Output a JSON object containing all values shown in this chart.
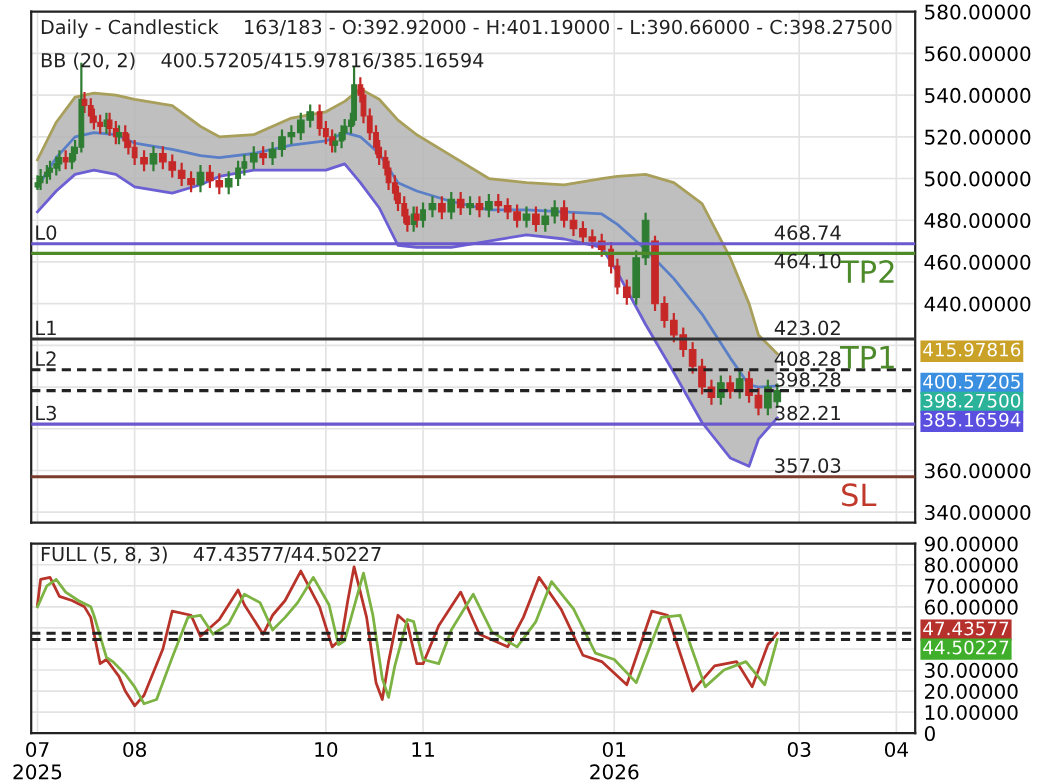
{
  "chart_data": [
    {
      "type": "candlestick",
      "title": "Daily - Candlestick    163/183 - O:392.92000 - H:401.19000 - L:390.66000 - C:398.27500",
      "subtitle": "BB (20, 2)    400.57205/415.97816/385.16594",
      "x": [
        "2025-07-01",
        "2025-07-02",
        "2025-07-04",
        "2025-07-05",
        "2025-07-07",
        "2025-07-08",
        "2025-07-10",
        "2025-07-12",
        "2025-07-13",
        "2025-07-15",
        "2025-07-16",
        "2025-07-18",
        "2025-07-19",
        "2025-07-21",
        "2025-07-23",
        "2025-07-24",
        "2025-07-26",
        "2025-07-27",
        "2025-07-29",
        "2025-07-30",
        "2025-08-01",
        "2025-08-04",
        "2025-08-07",
        "2025-08-10",
        "2025-08-13",
        "2025-08-16",
        "2025-08-19",
        "2025-08-22",
        "2025-08-25",
        "2025-08-28",
        "2025-08-31",
        "2025-09-03",
        "2025-09-05",
        "2025-09-08",
        "2025-09-11",
        "2025-09-14",
        "2025-09-17",
        "2025-09-20",
        "2025-09-23",
        "2025-09-26",
        "2025-09-29",
        "2025-10-01",
        "2025-10-03",
        "2025-10-04",
        "2025-10-06",
        "2025-10-07",
        "2025-10-09",
        "2025-10-10",
        "2025-10-12",
        "2025-10-13",
        "2025-10-15",
        "2025-10-17",
        "2025-10-18",
        "2025-10-20",
        "2025-10-21",
        "2025-10-23",
        "2025-10-24",
        "2025-10-26",
        "2025-10-27",
        "2025-10-29",
        "2025-10-30",
        "2025-11-01",
        "2025-11-04",
        "2025-11-07",
        "2025-11-10",
        "2025-11-13",
        "2025-11-16",
        "2025-11-19",
        "2025-11-22",
        "2025-11-25",
        "2025-11-28",
        "2025-12-01",
        "2025-12-04",
        "2025-12-07",
        "2025-12-10",
        "2025-12-13",
        "2025-12-16",
        "2025-12-19",
        "2025-12-22",
        "2025-12-25",
        "2025-12-28",
        "2025-12-31",
        "2026-01-02",
        "2026-01-05",
        "2026-01-08",
        "2026-01-11",
        "2026-01-14",
        "2026-01-17",
        "2026-01-20",
        "2026-01-23",
        "2026-01-26",
        "2026-01-29",
        "2026-02-01",
        "2026-02-04",
        "2026-02-07",
        "2026-02-10",
        "2026-02-13",
        "2026-02-16",
        "2026-02-19",
        "2026-02-22"
      ],
      "ohlc": [
        [
          496,
          501,
          495,
          498
        ],
        [
          498,
          504,
          495,
          501
        ],
        [
          501,
          506,
          498,
          503
        ],
        [
          503,
          508,
          500,
          505
        ],
        [
          505,
          510,
          502,
          507
        ],
        [
          507,
          513,
          504,
          510
        ],
        [
          510,
          513,
          505,
          508
        ],
        [
          508,
          515,
          505,
          512
        ],
        [
          512,
          518,
          509,
          515
        ],
        [
          515,
          555,
          513,
          538
        ],
        [
          538,
          541,
          532,
          535
        ],
        [
          535,
          538,
          527,
          530
        ],
        [
          530,
          533,
          524,
          527
        ],
        [
          527,
          530,
          522,
          525
        ],
        [
          525,
          531,
          522,
          528
        ],
        [
          528,
          531,
          521,
          524
        ],
        [
          524,
          527,
          517,
          520
        ],
        [
          520,
          525,
          517,
          522
        ],
        [
          522,
          525,
          515,
          518
        ],
        [
          518,
          521,
          512,
          515
        ],
        [
          515,
          518,
          507,
          510
        ],
        [
          510,
          513,
          504,
          507
        ],
        [
          507,
          515,
          504,
          512
        ],
        [
          512,
          515,
          505,
          508
        ],
        [
          508,
          511,
          501,
          504
        ],
        [
          504,
          507,
          497,
          500
        ],
        [
          500,
          503,
          494,
          497
        ],
        [
          497,
          506,
          494,
          503
        ],
        [
          503,
          506,
          496,
          499
        ],
        [
          499,
          502,
          493,
          496
        ],
        [
          496,
          503,
          493,
          500
        ],
        [
          500,
          508,
          497,
          505
        ],
        [
          505,
          511,
          502,
          508
        ],
        [
          508,
          515,
          505,
          512
        ],
        [
          512,
          515,
          507,
          510
        ],
        [
          510,
          517,
          507,
          514
        ],
        [
          514,
          523,
          511,
          520
        ],
        [
          520,
          525,
          517,
          522
        ],
        [
          522,
          531,
          519,
          528
        ],
        [
          528,
          535,
          525,
          532
        ],
        [
          532,
          535,
          521,
          524
        ],
        [
          524,
          527,
          517,
          520
        ],
        [
          520,
          523,
          513,
          516
        ],
        [
          516,
          521,
          513,
          518
        ],
        [
          518,
          525,
          515,
          522
        ],
        [
          522,
          528,
          519,
          525
        ],
        [
          525,
          531,
          522,
          528
        ],
        [
          528,
          553,
          526,
          545
        ],
        [
          545,
          548,
          537,
          540
        ],
        [
          540,
          543,
          527,
          530
        ],
        [
          530,
          533,
          519,
          522
        ],
        [
          522,
          525,
          512,
          515
        ],
        [
          515,
          518,
          507,
          510
        ],
        [
          510,
          513,
          502,
          505
        ],
        [
          505,
          508,
          495,
          498
        ],
        [
          498,
          501,
          490,
          493
        ],
        [
          493,
          496,
          485,
          488
        ],
        [
          488,
          491,
          479,
          482
        ],
        [
          482,
          485,
          475,
          478
        ],
        [
          478,
          486,
          475,
          483
        ],
        [
          483,
          486,
          477,
          480
        ],
        [
          480,
          488,
          477,
          485
        ],
        [
          485,
          491,
          482,
          488
        ],
        [
          488,
          491,
          481,
          484
        ],
        [
          484,
          493,
          481,
          490
        ],
        [
          490,
          493,
          483,
          486
        ],
        [
          486,
          491,
          483,
          488
        ],
        [
          488,
          491,
          482,
          485
        ],
        [
          485,
          492,
          482,
          489
        ],
        [
          489,
          492,
          484,
          487
        ],
        [
          487,
          490,
          481,
          484
        ],
        [
          484,
          487,
          477,
          480
        ],
        [
          480,
          486,
          477,
          483
        ],
        [
          483,
          486,
          475,
          478
        ],
        [
          478,
          485,
          475,
          482
        ],
        [
          482,
          489,
          479,
          486
        ],
        [
          486,
          489,
          477,
          480
        ],
        [
          480,
          483,
          473,
          476
        ],
        [
          476,
          479,
          469,
          472
        ],
        [
          472,
          475,
          467,
          470
        ],
        [
          470,
          473,
          463,
          466
        ],
        [
          466,
          469,
          455,
          458
        ],
        [
          458,
          461,
          445,
          448
        ],
        [
          448,
          451,
          440,
          443
        ],
        [
          443,
          465,
          440,
          462
        ],
        [
          462,
          483,
          459,
          480
        ],
        [
          470,
          472,
          437,
          440
        ],
        [
          440,
          443,
          429,
          432
        ],
        [
          432,
          435,
          422,
          425
        ],
        [
          425,
          428,
          415,
          418
        ],
        [
          418,
          421,
          407,
          410
        ],
        [
          410,
          413,
          397,
          400
        ],
        [
          400,
          403,
          392,
          395
        ],
        [
          395,
          405,
          392,
          402
        ],
        [
          402,
          405,
          395,
          398
        ],
        [
          398,
          407,
          395,
          404
        ],
        [
          404,
          407,
          393,
          396
        ],
        [
          396,
          399,
          387,
          390
        ],
        [
          390,
          403,
          387,
          400
        ],
        [
          392.92,
          401.19,
          390.66,
          398.275
        ]
      ],
      "series": [
        {
          "type": "line",
          "color": "#a89f5a",
          "x": [
            "2025-07-01",
            "2025-07-07",
            "2025-07-13",
            "2025-07-19",
            "2025-07-26",
            "2025-08-01",
            "2025-08-13",
            "2025-08-22",
            "2025-08-28",
            "2025-09-08",
            "2025-09-20",
            "2025-10-01",
            "2025-10-07",
            "2025-10-12",
            "2025-10-18",
            "2025-10-24",
            "2025-10-30",
            "2025-11-10",
            "2025-11-22",
            "2025-12-04",
            "2025-12-16",
            "2025-12-28",
            "2026-01-02",
            "2026-01-11",
            "2026-01-20",
            "2026-01-29",
            "2026-02-07",
            "2026-02-13",
            "2026-02-16",
            "2026-02-22"
          ],
          "values": [
            509,
            527,
            539,
            541,
            540,
            538,
            535,
            525,
            520,
            521,
            529,
            532,
            537,
            543,
            538,
            528,
            521,
            511,
            500,
            498,
            497,
            500,
            501,
            502,
            498,
            488,
            462,
            440,
            425,
            415.97816
          ]
        },
        {
          "type": "line",
          "color": "#6b5fd3",
          "x": [
            "2025-07-01",
            "2025-07-07",
            "2025-07-13",
            "2025-07-19",
            "2025-07-26",
            "2025-08-01",
            "2025-08-13",
            "2025-08-22",
            "2025-08-28",
            "2025-09-08",
            "2025-09-20",
            "2025-10-01",
            "2025-10-07",
            "2025-10-12",
            "2025-10-18",
            "2025-10-24",
            "2025-10-30",
            "2025-11-10",
            "2025-11-22",
            "2025-12-04",
            "2025-12-16",
            "2025-12-28",
            "2026-01-02",
            "2026-01-11",
            "2026-01-20",
            "2026-01-29",
            "2026-02-07",
            "2026-02-13",
            "2026-02-16",
            "2026-02-22"
          ],
          "values": [
            484,
            494,
            502,
            504,
            502,
            496,
            493,
            497,
            501,
            504,
            504,
            504,
            507,
            498,
            486,
            468,
            467,
            467,
            470,
            473,
            471,
            467,
            455,
            430,
            407,
            383,
            366,
            362,
            375,
            385.16594
          ]
        },
        {
          "type": "line",
          "color": "#5b7fc7",
          "x": [
            "2025-07-01",
            "2025-07-07",
            "2025-07-13",
            "2025-07-19",
            "2025-07-26",
            "2025-08-01",
            "2025-08-13",
            "2025-08-22",
            "2025-08-28",
            "2025-09-08",
            "2025-09-20",
            "2025-10-01",
            "2025-10-07",
            "2025-10-12",
            "2025-10-18",
            "2025-10-24",
            "2025-10-30",
            "2025-11-10",
            "2025-11-22",
            "2025-12-04",
            "2025-12-16",
            "2025-12-28",
            "2026-01-02",
            "2026-01-11",
            "2026-01-20",
            "2026-01-29",
            "2026-02-07",
            "2026-02-13",
            "2026-02-16",
            "2026-02-22"
          ],
          "values": [
            496,
            510,
            520,
            522,
            521,
            517,
            514,
            511,
            510,
            512,
            516,
            518,
            522,
            520,
            512,
            498,
            494,
            489,
            485,
            485,
            484,
            483,
            478,
            466,
            452,
            435,
            414,
            401,
            400,
            400.57205
          ],
          "upper": [
            509,
            527,
            539,
            541,
            540,
            538,
            535,
            525,
            520,
            521,
            529,
            532,
            537,
            543,
            538,
            528,
            521,
            511,
            500,
            498,
            497,
            500,
            501,
            502,
            498,
            488,
            462,
            440,
            425,
            415.97816
          ],
          "lower": [
            484,
            494,
            502,
            504,
            502,
            496,
            493,
            497,
            501,
            504,
            504,
            504,
            507,
            498,
            486,
            468,
            467,
            467,
            470,
            473,
            471,
            467,
            455,
            430,
            407,
            383,
            366,
            362,
            375,
            385.16594
          ]
        }
      ],
      "xlim": [
        "2025-06-29",
        "2026-04-07"
      ],
      "ylim": [
        335,
        580
      ],
      "xticks": [
        {
          "value": "2025-07-01",
          "label": null
        },
        {
          "value": "2025-08-01",
          "label": null
        },
        {
          "value": "2025-10-01",
          "label": null
        },
        {
          "value": "2025-11-01",
          "label": null
        },
        {
          "value": "2026-01-01",
          "label": null
        },
        {
          "value": "2026-03-01",
          "label": null
        },
        {
          "value": "2026-04-01",
          "label": null
        }
      ],
      "yticks": [
        {
          "value": 340,
          "label": "340.00000"
        },
        {
          "value": 360,
          "label": "360.00000"
        },
        {
          "value": 380,
          "label": null
        },
        {
          "value": 400,
          "label": null
        },
        {
          "value": 420,
          "label": null
        },
        {
          "value": 440,
          "label": "440.00000"
        },
        {
          "value": 460,
          "label": "460.00000"
        },
        {
          "value": 480,
          "label": "480.00000"
        },
        {
          "value": 500,
          "label": "500.00000"
        },
        {
          "value": 520,
          "label": "520.00000"
        },
        {
          "value": 540,
          "label": "540.00000"
        },
        {
          "value": 560,
          "label": "560.00000"
        },
        {
          "value": 580,
          "label": "580.00000"
        }
      ],
      "tick_labels": "y",
      "grid": true,
      "ref_lines": [
        {
          "axis": "y",
          "value": 468.74,
          "label": "468.74",
          "color": "#6a5acd",
          "line_style": "solid"
        },
        {
          "axis": "y",
          "value": 464.1,
          "label": "464.10",
          "color": "#4c8a2a",
          "line_style": "solid"
        },
        {
          "axis": "y",
          "value": 423.02,
          "label": "423.02",
          "color": "#333333",
          "line_style": "solid"
        },
        {
          "axis": "y",
          "value": 408.28,
          "label": "408.28",
          "color": "#222222",
          "line_style": "dashed"
        },
        {
          "axis": "y",
          "value": 398.28,
          "label": "398.28",
          "color": "#222222",
          "line_style": "dashed"
        },
        {
          "axis": "y",
          "value": 382.21,
          "label": "382.21",
          "color": "#6a5acd",
          "line_style": "solid"
        },
        {
          "axis": "y",
          "value": 357.03,
          "label": "357.03",
          "color": "#7b3b2b",
          "line_style": "solid"
        }
      ],
      "annotations": [
        {
          "text": "L0",
          "x": "2025-06-30",
          "y": 468.74
        },
        {
          "text": "L1",
          "x": "2025-06-30",
          "y": 423.02
        },
        {
          "text": "L2",
          "x": "2025-06-30",
          "y": 408.28
        },
        {
          "text": "L3",
          "x": "2025-06-30",
          "y": 382.21
        },
        "TP2",
        "TP1",
        "SL",
        "415.97816",
        "400.57205",
        "398.27500",
        "385.16594"
      ]
    },
    {
      "type": "line",
      "title": "FULL (5, 8, 3)    47.43577/44.50227",
      "series": [
        {
          "color": "#b8342a",
          "x": [
            "2025-07-01",
            "2025-07-02",
            "2025-07-05",
            "2025-07-08",
            "2025-07-12",
            "2025-07-16",
            "2025-07-18",
            "2025-07-21",
            "2025-07-23",
            "2025-07-27",
            "2025-07-29",
            "2025-08-01",
            "2025-08-04",
            "2025-08-10",
            "2025-08-13",
            "2025-08-19",
            "2025-08-22",
            "2025-08-28",
            "2025-09-03",
            "2025-09-05",
            "2025-09-11",
            "2025-09-14",
            "2025-09-18",
            "2025-09-23",
            "2025-09-29",
            "2025-10-03",
            "2025-10-06",
            "2025-10-08",
            "2025-10-10",
            "2025-10-14",
            "2025-10-17",
            "2025-10-19",
            "2025-10-21",
            "2025-10-24",
            "2025-10-27",
            "2025-10-30",
            "2025-11-01",
            "2025-11-06",
            "2025-11-13",
            "2025-11-19",
            "2025-11-28",
            "2025-12-03",
            "2025-12-08",
            "2025-12-15",
            "2025-12-22",
            "2025-12-28",
            "2026-01-05",
            "2026-01-13",
            "2026-01-18",
            "2026-01-26",
            "2026-02-02",
            "2026-02-09",
            "2026-02-14",
            "2026-02-19",
            "2026-02-22"
          ],
          "values": [
            61,
            73,
            74,
            65,
            63,
            60,
            55,
            33,
            35,
            27,
            20,
            13,
            18,
            40,
            58,
            56,
            46,
            54,
            68,
            61,
            47,
            56,
            63,
            77,
            60,
            41,
            45,
            63,
            79,
            55,
            24,
            16,
            34,
            56,
            52,
            33,
            33,
            51,
            67,
            47,
            41,
            55,
            74,
            59,
            37,
            34,
            23,
            58,
            56,
            20,
            32,
            34,
            22,
            42,
            47.43577
          ]
        },
        {
          "color": "#7cb342",
          "x": [
            "2025-07-01",
            "2025-07-04",
            "2025-07-07",
            "2025-07-10",
            "2025-07-14",
            "2025-07-18",
            "2025-07-19",
            "2025-07-23",
            "2025-07-25",
            "2025-07-29",
            "2025-08-01",
            "2025-08-04",
            "2025-08-08",
            "2025-08-13",
            "2025-08-18",
            "2025-08-22",
            "2025-08-26",
            "2025-08-31",
            "2025-09-05",
            "2025-09-10",
            "2025-09-14",
            "2025-09-18",
            "2025-09-22",
            "2025-09-27",
            "2025-10-02",
            "2025-10-05",
            "2025-10-07",
            "2025-10-10",
            "2025-10-13",
            "2025-10-16",
            "2025-10-19",
            "2025-10-21",
            "2025-10-23",
            "2025-10-27",
            "2025-10-29",
            "2025-11-01",
            "2025-11-06",
            "2025-11-10",
            "2025-11-17",
            "2025-11-23",
            "2025-12-01",
            "2025-12-07",
            "2025-12-12",
            "2025-12-19",
            "2025-12-26",
            "2026-01-01",
            "2026-01-08",
            "2026-01-16",
            "2026-01-22",
            "2026-01-30",
            "2026-02-05",
            "2026-02-12",
            "2026-02-18",
            "2026-02-22"
          ],
          "values": [
            60,
            70,
            73,
            67,
            63,
            60,
            56,
            36,
            34,
            28,
            22,
            14,
            16,
            36,
            55,
            56,
            47,
            52,
            66,
            62,
            49,
            55,
            62,
            74,
            61,
            42,
            44,
            60,
            76,
            56,
            26,
            17,
            32,
            54,
            53,
            35,
            33,
            49,
            66,
            48,
            41,
            53,
            72,
            59,
            38,
            35,
            24,
            55,
            56,
            22,
            30,
            34,
            23,
            44.50227
          ]
        }
      ],
      "xlim": [
        "2025-06-29",
        "2026-04-07"
      ],
      "ylim": [
        0,
        90
      ],
      "xticks": [
        {
          "value": "2025-07-01",
          "label": "07\n2025"
        },
        {
          "value": "2025-08-01",
          "label": "08"
        },
        {
          "value": "2025-10-01",
          "label": "10"
        },
        {
          "value": "2025-11-01",
          "label": "11"
        },
        {
          "value": "2026-01-01",
          "label": "01\n2026"
        },
        {
          "value": "2026-03-01",
          "label": "03"
        },
        {
          "value": "2026-04-01",
          "label": "04"
        }
      ],
      "yticks": [
        {
          "value": 0,
          "label": "0"
        },
        {
          "value": 10,
          "label": "10.00000"
        },
        {
          "value": 20,
          "label": "20.00000"
        },
        {
          "value": 30,
          "label": "30.00000"
        },
        {
          "value": 40,
          "label": null
        },
        {
          "value": 50,
          "label": null
        },
        {
          "value": 60,
          "label": "60.00000"
        },
        {
          "value": 70,
          "label": "70.00000"
        },
        {
          "value": 80,
          "label": "80.00000"
        },
        {
          "value": 90,
          "label": "90.00000"
        }
      ],
      "grid": true,
      "ref_lines": [
        {
          "axis": "y",
          "value": 47.43577,
          "label": "47.43577",
          "color": "#222222",
          "line_style": "dashed"
        },
        {
          "axis": "y",
          "value": 44.50227,
          "label": "44.50227",
          "color": "#222222",
          "line_style": "dashed"
        }
      ]
    }
  ]
}
